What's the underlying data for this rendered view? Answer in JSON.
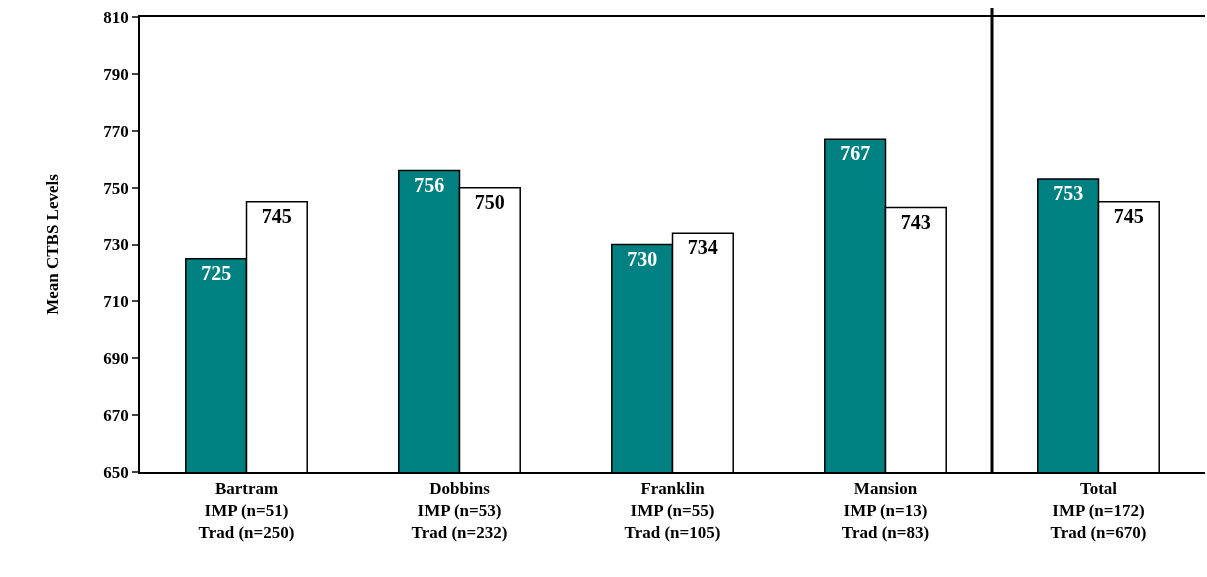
{
  "chart_data": {
    "type": "bar",
    "ylabel": "Mean CTBS Levels",
    "categories": [
      "Bartram\nIMP (n=51)\nTrad (n=250)",
      "Dobbins\nIMP (n=53)\nTrad (n=232)",
      "Franklin\nIMP (n=55)\nTrad (n=105)",
      "Mansion\nIMP (n=13)\nTrad (n=83)",
      "Total\nIMP (n=172)\nTrad (n=670)"
    ],
    "series": [
      {
        "color": "#008080",
        "values": [
          725,
          756,
          730,
          767,
          753
        ]
      },
      {
        "color": "#ffffff",
        "values": [
          745,
          750,
          734,
          743,
          745
        ]
      }
    ],
    "ylim": [
      650,
      810
    ],
    "yticks": [
      650,
      670,
      690,
      710,
      730,
      750,
      770,
      790,
      810
    ],
    "grid": false,
    "data_labels": true
  }
}
